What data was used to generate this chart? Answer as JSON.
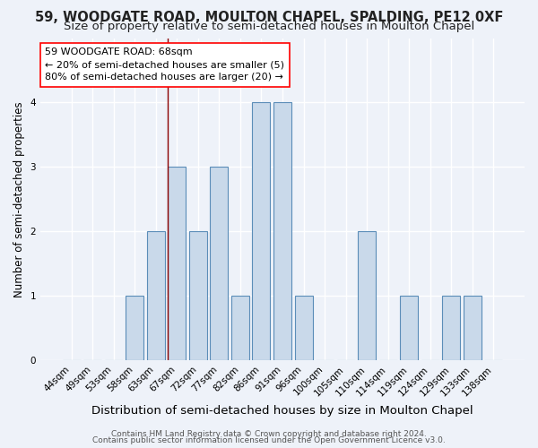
{
  "title": "59, WOODGATE ROAD, MOULTON CHAPEL, SPALDING, PE12 0XF",
  "subtitle": "Size of property relative to semi-detached houses in Moulton Chapel",
  "xlabel": "Distribution of semi-detached houses by size in Moulton Chapel",
  "ylabel": "Number of semi-detached properties",
  "footer1": "Contains HM Land Registry data © Crown copyright and database right 2024.",
  "footer2": "Contains public sector information licensed under the Open Government Licence v3.0.",
  "bin_labels": [
    "44sqm",
    "49sqm",
    "53sqm",
    "58sqm",
    "63sqm",
    "67sqm",
    "72sqm",
    "77sqm",
    "82sqm",
    "86sqm",
    "91sqm",
    "96sqm",
    "100sqm",
    "105sqm",
    "110sqm",
    "114sqm",
    "119sqm",
    "124sqm",
    "129sqm",
    "133sqm",
    "138sqm"
  ],
  "bar_heights": [
    0,
    0,
    0,
    1,
    2,
    3,
    2,
    3,
    1,
    4,
    4,
    1,
    0,
    0,
    2,
    0,
    1,
    0,
    1,
    1,
    0
  ],
  "bar_color": "#c9d9ea",
  "bar_edge_color": "#5b8db8",
  "property_line_label": "59 WOODGATE ROAD: 68sqm",
  "annotation_line1": "← 20% of semi-detached houses are smaller (5)",
  "annotation_line2": "80% of semi-detached houses are larger (20) →",
  "vline_color": "#8b0000",
  "vline_index": 5,
  "ylim": [
    0,
    5
  ],
  "yticks": [
    0,
    1,
    2,
    3,
    4
  ],
  "background_color": "#eef2f9",
  "grid_color": "white",
  "title_fontsize": 10.5,
  "subtitle_fontsize": 9.5,
  "xlabel_fontsize": 9.5,
  "ylabel_fontsize": 8.5,
  "tick_fontsize": 7.5,
  "annotation_fontsize": 8,
  "footer_fontsize": 6.5
}
